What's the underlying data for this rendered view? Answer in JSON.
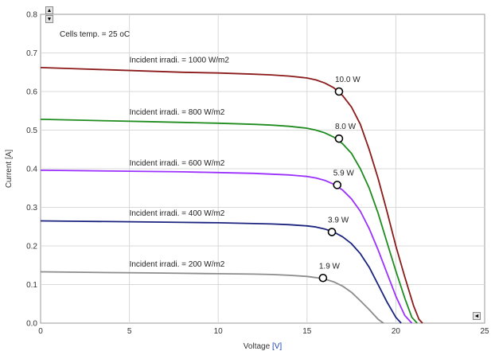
{
  "chart_data": {
    "type": "line",
    "title": "",
    "xlabel_prefix": "Voltage ",
    "xlabel_unit": "[V]",
    "ylabel": "Current [A]",
    "xlim": [
      0,
      25
    ],
    "ylim": [
      0,
      0.8
    ],
    "xticks": [
      "0",
      "5",
      "10",
      "15",
      "20",
      "25"
    ],
    "yticks": [
      "0.0",
      "0.1",
      "0.2",
      "0.3",
      "0.4",
      "0.5",
      "0.6",
      "0.7",
      "0.8"
    ],
    "grid": true,
    "annotation": "Cells temp.  = 25 oC",
    "series": [
      {
        "name": "Incident irradi. = 1000 W/m2",
        "color": "#8b1a1a",
        "x": [
          0,
          2,
          4,
          6,
          8,
          10,
          12,
          13,
          14,
          15,
          15.5,
          16,
          16.5,
          17,
          17.5,
          18,
          18.5,
          19,
          19.5,
          20,
          20.5,
          21,
          21.3,
          21.5
        ],
        "y": [
          0.662,
          0.659,
          0.656,
          0.653,
          0.65,
          0.648,
          0.645,
          0.643,
          0.64,
          0.635,
          0.63,
          0.622,
          0.61,
          0.59,
          0.56,
          0.515,
          0.45,
          0.375,
          0.29,
          0.2,
          0.12,
          0.045,
          0.01,
          0
        ]
      },
      {
        "name": "Incident irradi. = 800 W/m2",
        "color": "#1e8c1e",
        "x": [
          0,
          2,
          4,
          6,
          8,
          10,
          12,
          13,
          14,
          15,
          15.5,
          16,
          16.5,
          17,
          17.5,
          18,
          18.5,
          19,
          19.5,
          20,
          20.5,
          20.9,
          21.2
        ],
        "y": [
          0.528,
          0.526,
          0.524,
          0.522,
          0.52,
          0.518,
          0.515,
          0.513,
          0.51,
          0.505,
          0.5,
          0.493,
          0.482,
          0.465,
          0.44,
          0.4,
          0.35,
          0.285,
          0.21,
          0.135,
          0.065,
          0.015,
          0
        ]
      },
      {
        "name": "Incident irradi. = 600 W/m2",
        "color": "#9b30ff",
        "x": [
          0,
          2,
          4,
          6,
          8,
          10,
          12,
          13,
          14,
          15,
          15.5,
          16,
          16.5,
          17,
          17.5,
          18,
          18.5,
          19,
          19.5,
          20,
          20.5,
          20.9
        ],
        "y": [
          0.396,
          0.395,
          0.394,
          0.393,
          0.392,
          0.39,
          0.388,
          0.386,
          0.384,
          0.38,
          0.376,
          0.37,
          0.36,
          0.345,
          0.322,
          0.29,
          0.245,
          0.19,
          0.13,
          0.07,
          0.02,
          0
        ]
      },
      {
        "name": "Incident irradi. = 400 W/m2",
        "color": "#1a237e",
        "x": [
          0,
          2,
          4,
          6,
          8,
          10,
          12,
          13,
          14,
          15,
          15.5,
          16,
          16.5,
          17,
          17.5,
          18,
          18.5,
          19,
          19.5,
          20,
          20.3
        ],
        "y": [
          0.265,
          0.264,
          0.263,
          0.262,
          0.261,
          0.26,
          0.258,
          0.257,
          0.255,
          0.252,
          0.249,
          0.244,
          0.236,
          0.224,
          0.206,
          0.18,
          0.145,
          0.1,
          0.055,
          0.015,
          0
        ]
      },
      {
        "name": "Incident irradi. = 200 W/m2",
        "color": "#8c8c8c",
        "x": [
          0,
          2,
          4,
          6,
          8,
          10,
          12,
          13,
          14,
          15,
          15.5,
          16,
          16.5,
          17,
          17.5,
          18,
          18.5,
          19,
          19.3
        ],
        "y": [
          0.133,
          0.132,
          0.131,
          0.13,
          0.129,
          0.128,
          0.127,
          0.126,
          0.124,
          0.121,
          0.118,
          0.114,
          0.107,
          0.096,
          0.08,
          0.058,
          0.035,
          0.01,
          0
        ]
      }
    ],
    "series_label_positions": [
      {
        "x": 5,
        "y": 0.675
      },
      {
        "x": 5,
        "y": 0.54
      },
      {
        "x": 5,
        "y": 0.408
      },
      {
        "x": 5,
        "y": 0.278
      },
      {
        "x": 5,
        "y": 0.146
      }
    ],
    "max_power_points": [
      {
        "x": 16.8,
        "y": 0.6,
        "label": "10.0 W"
      },
      {
        "x": 16.8,
        "y": 0.478,
        "label": "8.0 W"
      },
      {
        "x": 16.7,
        "y": 0.358,
        "label": "5.9 W"
      },
      {
        "x": 16.4,
        "y": 0.236,
        "label": "3.9 W"
      },
      {
        "x": 15.9,
        "y": 0.117,
        "label": "1.9 W"
      }
    ]
  },
  "controls": {
    "scroll_up": "▲",
    "scroll_down": "▼",
    "scroll_left": "◄"
  }
}
